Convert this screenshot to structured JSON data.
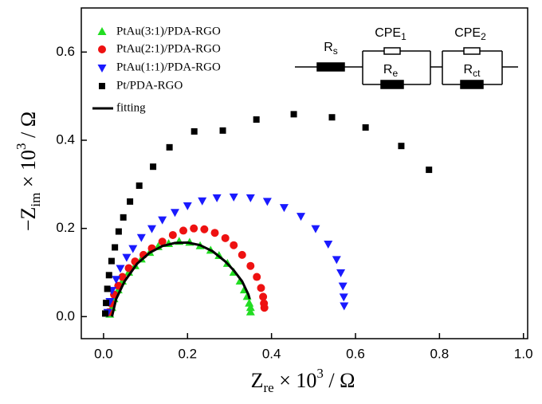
{
  "chart_data": {
    "type": "scatter",
    "xlabel_parts": [
      "Z",
      "re",
      " × 10",
      "3",
      " / Ω"
    ],
    "ylabel_parts": [
      "−Z",
      "im",
      " × 10",
      "3",
      " / Ω"
    ],
    "xlim": [
      -0.053,
      1.01
    ],
    "ylim": [
      -0.05,
      0.7
    ],
    "xticks": [
      {
        "value": 0,
        "label": "0.0"
      },
      0.2,
      0.4,
      0.6,
      0.8,
      {
        "value": 1,
        "label": "1.0"
      }
    ],
    "yticks": [
      {
        "value": 0,
        "label": "0.0"
      },
      0.2,
      0.4,
      0.6
    ],
    "legend": "upper left",
    "circuit_labels": [
      [
        "R",
        "s"
      ],
      [
        "CPE",
        "1"
      ],
      [
        "R",
        "e"
      ],
      [
        "CPE",
        "2"
      ],
      [
        "R",
        "ct"
      ]
    ],
    "series": [
      {
        "name": "PtAu(3:1)/PDA-RGO",
        "color": "#22dd22",
        "marker": "triangle-up",
        "x": [
          0.015,
          0.02,
          0.025,
          0.035,
          0.045,
          0.06,
          0.075,
          0.09,
          0.11,
          0.13,
          0.155,
          0.18,
          0.205,
          0.23,
          0.255,
          0.275,
          0.295,
          0.31,
          0.325,
          0.335,
          0.342,
          0.347,
          0.35,
          0.35
        ],
        "values": [
          0.005,
          0.02,
          0.04,
          0.06,
          0.08,
          0.1,
          0.115,
          0.13,
          0.145,
          0.158,
          0.165,
          0.17,
          0.168,
          0.16,
          0.15,
          0.138,
          0.12,
          0.1,
          0.08,
          0.06,
          0.045,
          0.03,
          0.02,
          0.01
        ]
      },
      {
        "name": "PtAu(2:1)/PDA-RGO",
        "color": "#ee1111",
        "marker": "circle",
        "x": [
          0.012,
          0.018,
          0.025,
          0.035,
          0.045,
          0.06,
          0.075,
          0.095,
          0.115,
          0.14,
          0.165,
          0.19,
          0.215,
          0.24,
          0.265,
          0.29,
          0.31,
          0.33,
          0.35,
          0.365,
          0.375,
          0.38,
          0.382,
          0.383
        ],
        "values": [
          0.01,
          0.03,
          0.05,
          0.07,
          0.09,
          0.11,
          0.125,
          0.14,
          0.155,
          0.17,
          0.185,
          0.195,
          0.2,
          0.198,
          0.19,
          0.178,
          0.162,
          0.14,
          0.115,
          0.09,
          0.065,
          0.045,
          0.03,
          0.02
        ]
      },
      {
        "name": "PtAu(1:1)/PDA-RGO",
        "color": "#1a1aff",
        "marker": "triangle-down",
        "x": [
          0.01,
          0.015,
          0.02,
          0.03,
          0.04,
          0.055,
          0.07,
          0.09,
          0.115,
          0.14,
          0.17,
          0.2,
          0.235,
          0.27,
          0.31,
          0.35,
          0.39,
          0.43,
          0.47,
          0.505,
          0.535,
          0.555,
          0.565,
          0.57,
          0.572,
          0.573
        ],
        "values": [
          0.01,
          0.035,
          0.06,
          0.085,
          0.11,
          0.135,
          0.155,
          0.18,
          0.2,
          0.22,
          0.237,
          0.252,
          0.263,
          0.27,
          0.272,
          0.27,
          0.262,
          0.248,
          0.228,
          0.2,
          0.165,
          0.13,
          0.1,
          0.07,
          0.045,
          0.025
        ]
      },
      {
        "name": "Pt/PDA-RGO",
        "color": "#000000",
        "marker": "square",
        "x": [
          0.004,
          0.006,
          0.009,
          0.013,
          0.019,
          0.027,
          0.036,
          0.047,
          0.063,
          0.085,
          0.118,
          0.157,
          0.216,
          0.284,
          0.364,
          0.453,
          0.544,
          0.624,
          0.709,
          0.775
        ],
        "values": [
          0.007,
          0.031,
          0.063,
          0.094,
          0.126,
          0.157,
          0.193,
          0.225,
          0.261,
          0.297,
          0.34,
          0.384,
          0.42,
          0.422,
          0.447,
          0.459,
          0.452,
          0.429,
          0.387,
          0.333
        ]
      },
      {
        "name": "fitting",
        "color": "#000000",
        "marker": "line",
        "x": [
          0.02,
          0.03,
          0.05,
          0.08,
          0.11,
          0.14,
          0.17,
          0.2,
          0.23,
          0.26,
          0.29,
          0.31,
          0.33,
          0.34,
          0.345,
          0.348
        ],
        "values": [
          0.0,
          0.04,
          0.08,
          0.12,
          0.145,
          0.16,
          0.167,
          0.168,
          0.162,
          0.148,
          0.125,
          0.105,
          0.08,
          0.06,
          0.05,
          0.04
        ]
      }
    ]
  }
}
